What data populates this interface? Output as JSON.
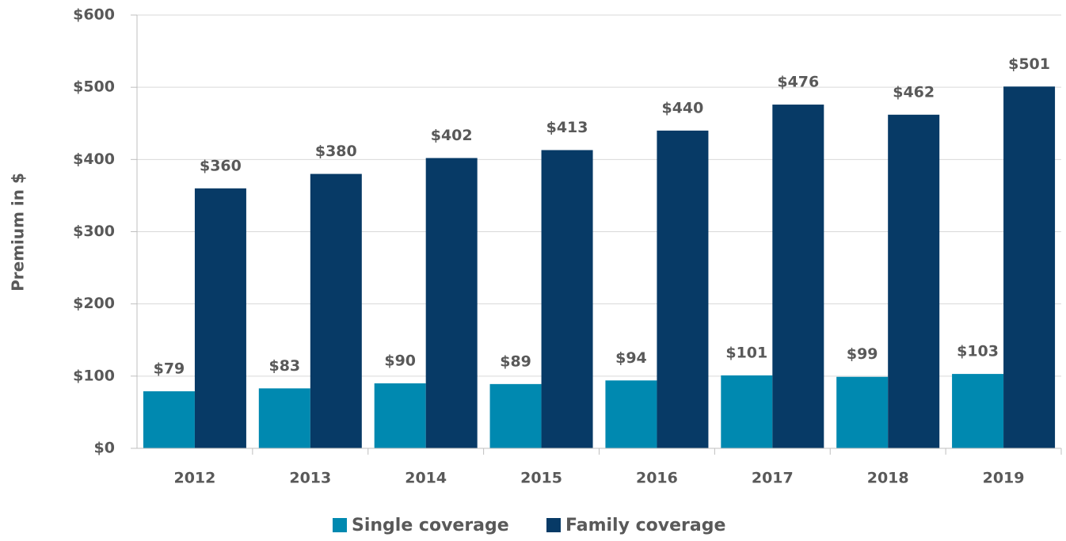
{
  "chart_data": {
    "type": "bar",
    "y_label": "Premium in $",
    "categories": [
      "2012",
      "2013",
      "2014",
      "2015",
      "2016",
      "2017",
      "2018",
      "2019"
    ],
    "series": [
      {
        "name": "Single coverage",
        "color": "#0089b0",
        "values": [
          79,
          83,
          90,
          89,
          94,
          101,
          99,
          103
        ],
        "value_labels": [
          "$79",
          "$83",
          "$90",
          "$89",
          "$94",
          "$101",
          "$99",
          "$103"
        ]
      },
      {
        "name": "Family coverage",
        "color": "#073a66",
        "values": [
          360,
          380,
          402,
          413,
          440,
          476,
          462,
          501
        ],
        "value_labels": [
          "$360",
          "$380",
          "$402",
          "$413",
          "$440",
          "$476",
          "$462",
          "$501"
        ]
      }
    ],
    "ylim": [
      0,
      600
    ],
    "yticks": [
      {
        "value": 0,
        "label": "$0"
      },
      {
        "value": 100,
        "label": "$100"
      },
      {
        "value": 200,
        "label": "$200"
      },
      {
        "value": 300,
        "label": "$300"
      },
      {
        "value": 400,
        "label": "$400"
      },
      {
        "value": 500,
        "label": "$500"
      },
      {
        "value": 600,
        "label": "$600"
      }
    ],
    "grid": true,
    "legend": "bottom"
  }
}
